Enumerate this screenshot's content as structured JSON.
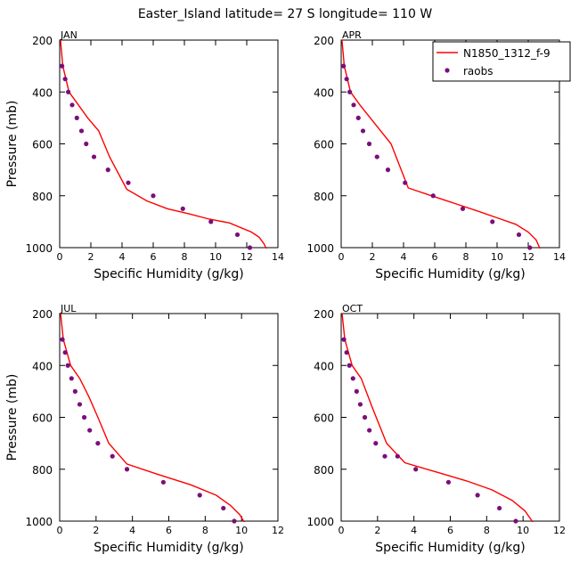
{
  "figure": {
    "title": "Easter_Island  latitude= 27 S longitude= 110 W"
  },
  "legend": {
    "placement": "top-right of APR panel",
    "model_label": "N1850_1312_f-9",
    "obs_label": "raobs"
  },
  "colors": {
    "model_line": "#ff0000",
    "obs_marker": "#7b0e7b",
    "axis": "#000000"
  },
  "chart_data": [
    {
      "type": "line",
      "panel": "JAN",
      "xlabel": "Specific Humidity (g/kg)",
      "ylabel": "Pressure (mb)",
      "xlim": [
        0,
        14
      ],
      "ylim": [
        1000,
        200
      ],
      "xticks": [
        0,
        2,
        4,
        6,
        8,
        10,
        12,
        14
      ],
      "yticks": [
        200,
        400,
        600,
        800,
        1000
      ],
      "series": [
        {
          "kind": "line",
          "x": [
            0.05,
            0.2,
            0.6,
            1.2,
            1.8,
            2.5,
            3.2,
            4.3,
            5.6,
            6.9,
            8.3,
            9.6,
            10.9,
            11.7,
            12.3,
            12.8,
            13.1,
            13.3
          ],
          "y": [
            200,
            300,
            400,
            450,
            500,
            550,
            650,
            775,
            820,
            850,
            870,
            890,
            905,
            925,
            940,
            960,
            985,
            1010
          ]
        },
        {
          "kind": "scatter",
          "x": [
            0.15,
            0.35,
            0.55,
            0.8,
            1.1,
            1.4,
            1.7,
            2.2,
            3.1,
            4.4,
            6.0,
            7.9,
            9.7,
            11.4,
            12.2
          ],
          "y": [
            300,
            350,
            400,
            450,
            500,
            550,
            600,
            650,
            700,
            750,
            800,
            850,
            900,
            950,
            1000
          ]
        }
      ]
    },
    {
      "type": "line",
      "panel": "APR",
      "xlabel": "Specific Humidity (g/kg)",
      "ylabel": "",
      "xlim": [
        0,
        14
      ],
      "ylim": [
        1000,
        200
      ],
      "xticks": [
        0,
        2,
        4,
        6,
        8,
        10,
        12,
        14
      ],
      "yticks": [
        200,
        400,
        600,
        800,
        1000
      ],
      "series": [
        {
          "kind": "line",
          "x": [
            0.05,
            0.2,
            0.6,
            1.2,
            2.0,
            3.2,
            4.3,
            5.8,
            7.3,
            8.8,
            10.0,
            11.2,
            12.0,
            12.5,
            12.8
          ],
          "y": [
            200,
            300,
            400,
            450,
            510,
            600,
            770,
            800,
            830,
            860,
            885,
            910,
            940,
            970,
            1010
          ]
        },
        {
          "kind": "scatter",
          "x": [
            0.15,
            0.35,
            0.55,
            0.8,
            1.1,
            1.4,
            1.8,
            2.3,
            3.0,
            4.1,
            5.9,
            7.8,
            9.7,
            11.4,
            12.1
          ],
          "y": [
            300,
            350,
            400,
            450,
            500,
            550,
            600,
            650,
            700,
            750,
            800,
            850,
            900,
            950,
            1000
          ]
        }
      ]
    },
    {
      "type": "line",
      "panel": "JUL",
      "xlabel": "Specific Humidity (g/kg)",
      "ylabel": "Pressure (mb)",
      "xlim": [
        0,
        12
      ],
      "ylim": [
        1000,
        200
      ],
      "xticks": [
        0,
        2,
        4,
        6,
        8,
        10,
        12
      ],
      "yticks": [
        200,
        400,
        600,
        800,
        1000
      ],
      "series": [
        {
          "kind": "line",
          "x": [
            0.05,
            0.2,
            0.6,
            1.1,
            1.6,
            2.1,
            2.7,
            3.7,
            5.4,
            7.2,
            8.6,
            9.4,
            9.9,
            10.2
          ],
          "y": [
            200,
            300,
            400,
            450,
            520,
            600,
            700,
            780,
            820,
            860,
            900,
            940,
            975,
            1010
          ]
        },
        {
          "kind": "scatter",
          "x": [
            0.15,
            0.3,
            0.45,
            0.65,
            0.85,
            1.1,
            1.35,
            1.65,
            2.1,
            2.9,
            3.7,
            5.7,
            7.7,
            9.0,
            9.6
          ],
          "y": [
            300,
            350,
            400,
            450,
            500,
            550,
            600,
            650,
            700,
            750,
            800,
            850,
            900,
            950,
            1000
          ]
        }
      ]
    },
    {
      "type": "line",
      "panel": "OCT",
      "xlabel": "Specific Humidity (g/kg)",
      "ylabel": "",
      "xlim": [
        0,
        12
      ],
      "ylim": [
        1000,
        200
      ],
      "xticks": [
        0,
        2,
        4,
        6,
        8,
        10,
        12
      ],
      "yticks": [
        200,
        400,
        600,
        800,
        1000
      ],
      "series": [
        {
          "kind": "line",
          "x": [
            0.05,
            0.2,
            0.6,
            1.1,
            1.7,
            2.5,
            3.5,
            5.2,
            6.9,
            8.3,
            9.4,
            10.1,
            10.6
          ],
          "y": [
            200,
            300,
            400,
            450,
            560,
            700,
            775,
            810,
            845,
            880,
            920,
            960,
            1010
          ]
        },
        {
          "kind": "scatter",
          "x": [
            0.15,
            0.3,
            0.45,
            0.65,
            0.85,
            1.05,
            1.3,
            1.55,
            1.9,
            2.4,
            3.1,
            4.1,
            5.9,
            7.5,
            8.7,
            9.6
          ],
          "y": [
            300,
            350,
            400,
            450,
            500,
            550,
            600,
            650,
            700,
            750,
            750,
            800,
            850,
            900,
            950,
            1000
          ]
        }
      ]
    }
  ]
}
